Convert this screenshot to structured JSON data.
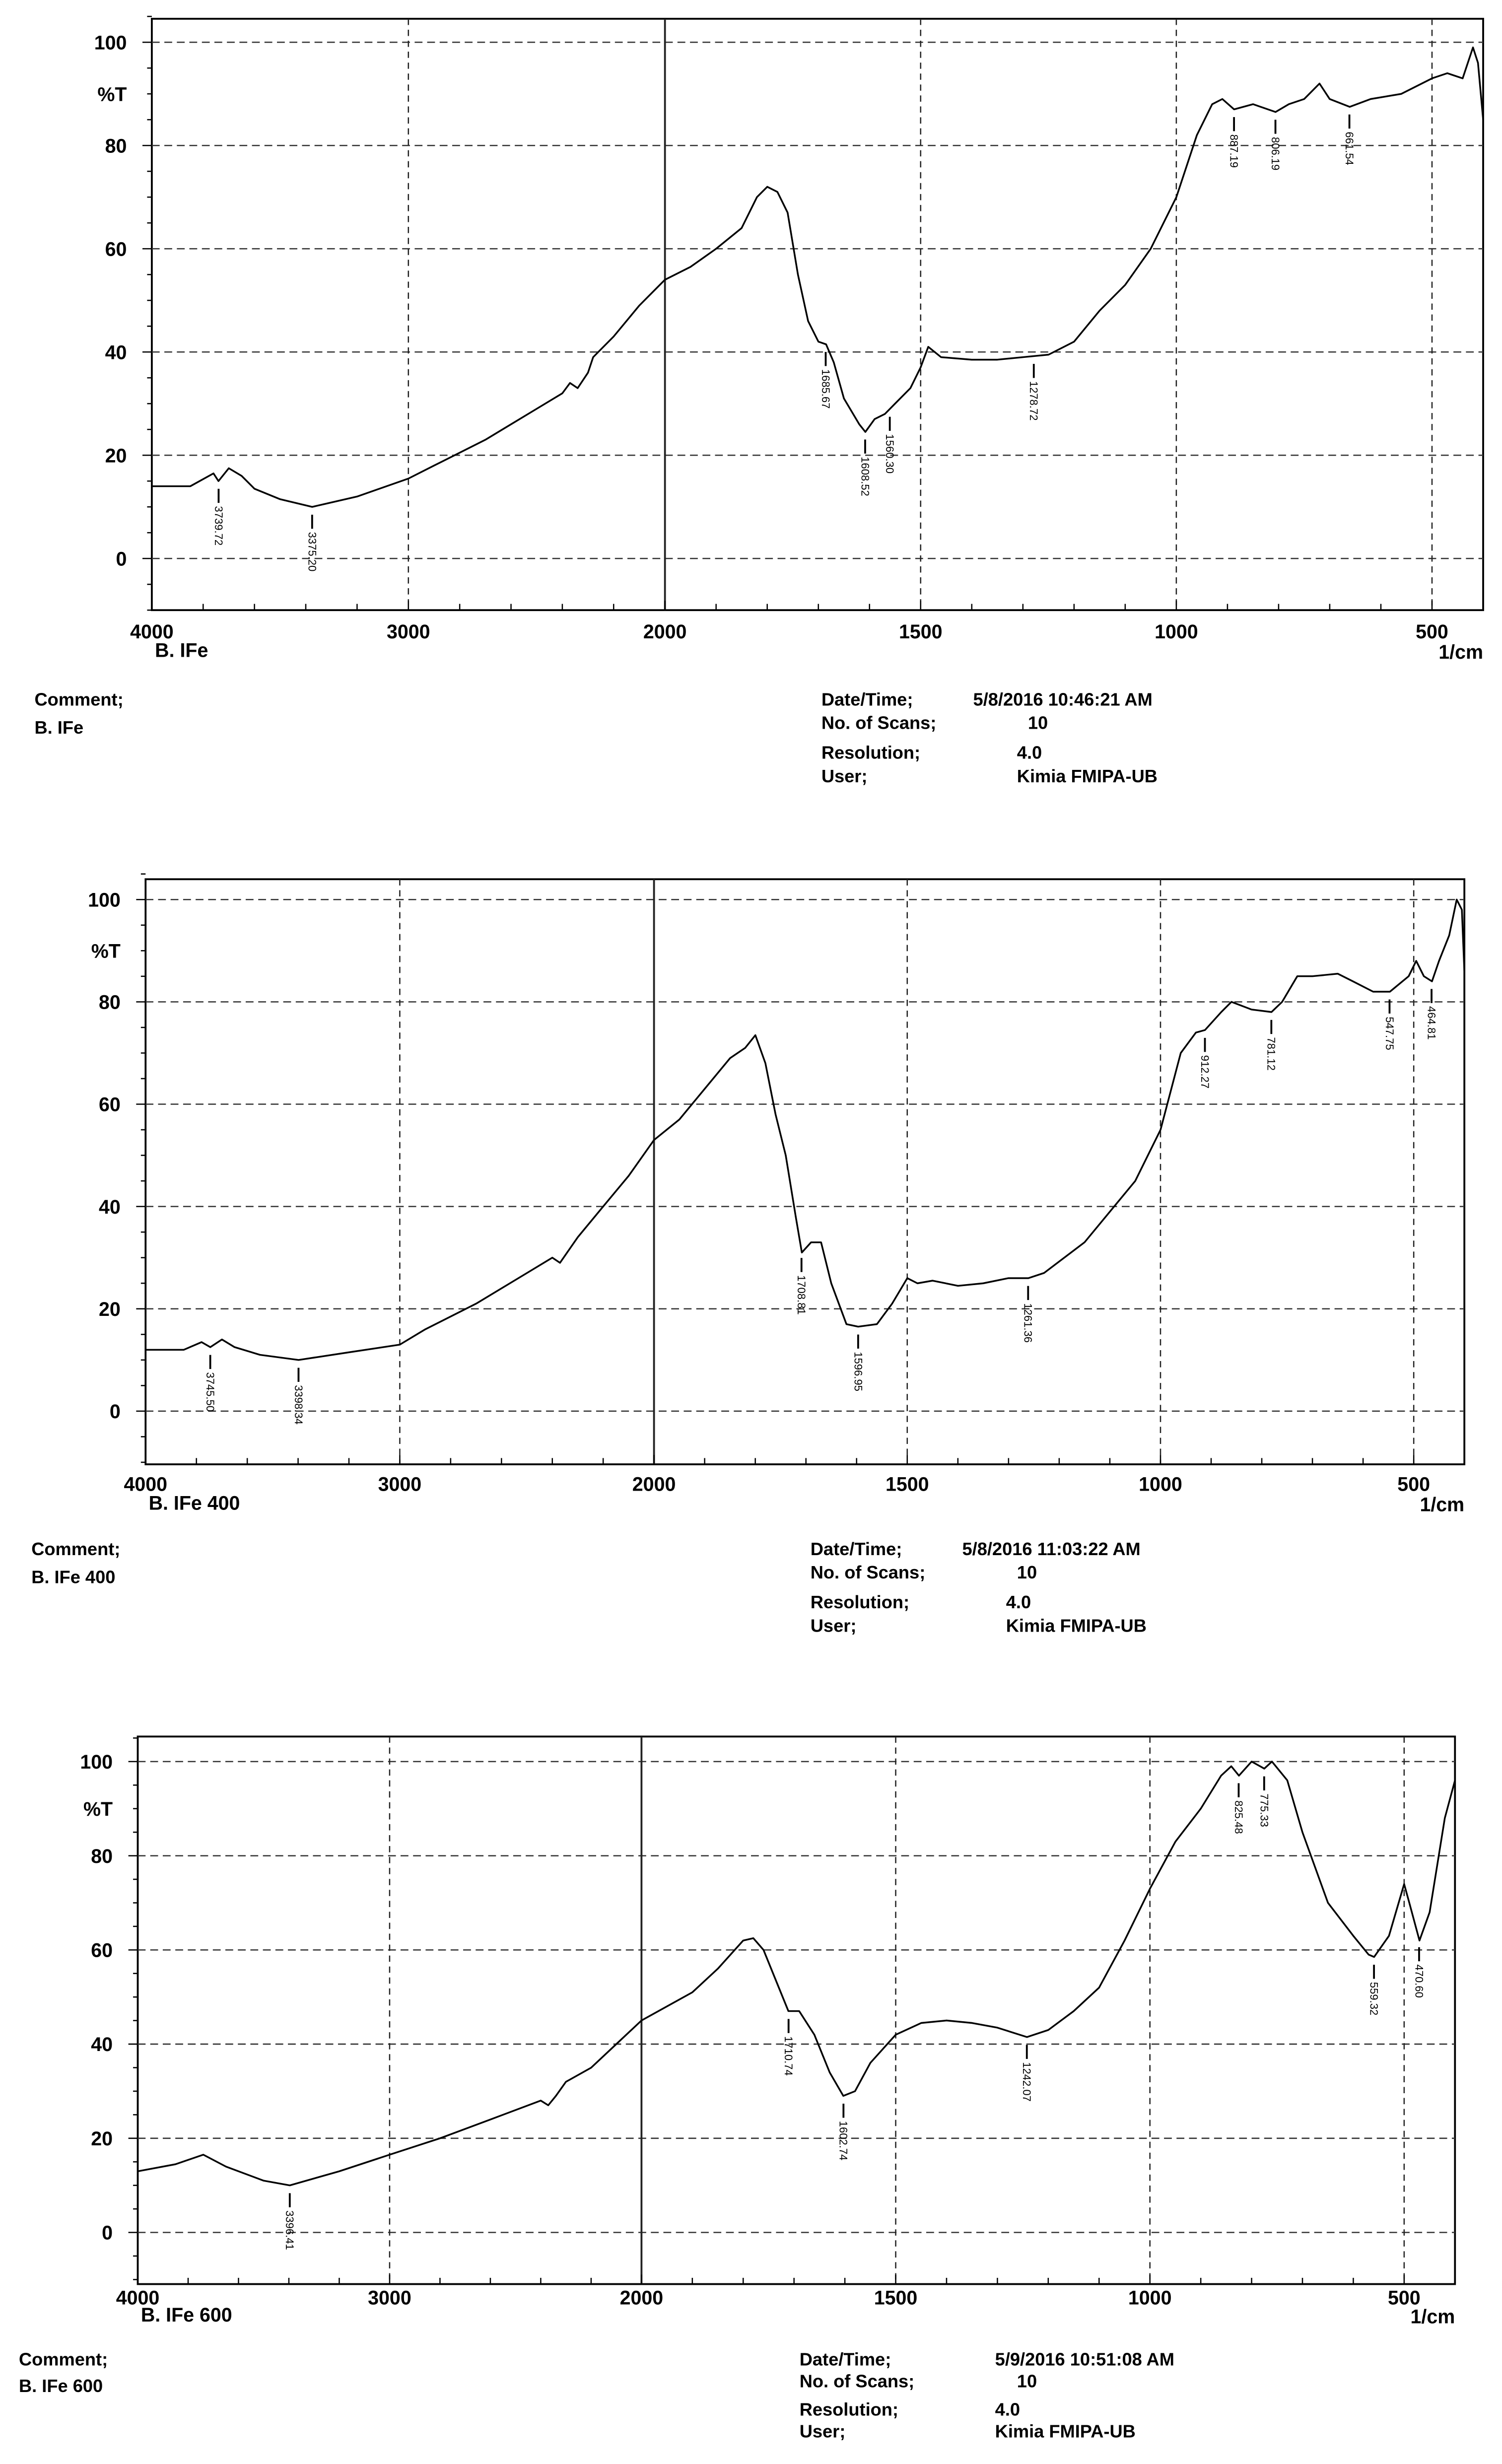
{
  "chart_data": [
    {
      "type": "line",
      "sample": "B. IFe",
      "xlabel": "1/cm",
      "ylabel": "%T",
      "xlim": [
        4000,
        400
      ],
      "ylim": [
        -10,
        105
      ],
      "xticks": [
        4000,
        3000,
        2000,
        1500,
        1000,
        500
      ],
      "yticks": [
        100,
        80,
        60,
        40,
        20,
        0
      ],
      "grid": true,
      "comment_label": "Comment;",
      "comment": "B. IFe",
      "meta": {
        "date_label": "Date/Time;",
        "date": "5/8/2016 10:46:21 AM",
        "scans_label": "No. of Scans;",
        "scans": "10",
        "resolution_label": "Resolution;",
        "resolution": "4.0",
        "user_label": "User;",
        "user": "Kimia FMIPA-UB"
      },
      "peaks": [
        "3739.72",
        "3375.20",
        "1685.67",
        "1608.52",
        "1560.30",
        "1278.72",
        "887.19",
        "806.19",
        "661.54"
      ],
      "series": [
        {
          "name": "B. IFe",
          "x": [
            4000,
            3850,
            3760,
            3740,
            3700,
            3650,
            3600,
            3500,
            3375,
            3200,
            3000,
            2900,
            2700,
            2500,
            2400,
            2370,
            2340,
            2300,
            2280,
            2200,
            2100,
            2000,
            1950,
            1900,
            1850,
            1820,
            1800,
            1780,
            1760,
            1740,
            1720,
            1700,
            1685,
            1670,
            1650,
            1620,
            1608,
            1590,
            1570,
            1550,
            1520,
            1500,
            1485,
            1460,
            1400,
            1350,
            1300,
            1250,
            1200,
            1150,
            1100,
            1050,
            1000,
            960,
            930,
            910,
            887,
            850,
            806,
            780,
            750,
            720,
            700,
            661,
            620,
            560,
            500,
            470,
            440,
            420,
            410,
            400
          ],
          "y": [
            14,
            14,
            16.5,
            15,
            17.5,
            16,
            13.5,
            11.5,
            10,
            12,
            15.5,
            18,
            23,
            29,
            32,
            34,
            33,
            36,
            39,
            43,
            49,
            54,
            56.5,
            60,
            64,
            70,
            72,
            71,
            67,
            55,
            46,
            42,
            41.5,
            38,
            31,
            26,
            24.5,
            27,
            28,
            30,
            33,
            37,
            41,
            39,
            38.5,
            38.5,
            39,
            39.5,
            42,
            48,
            53,
            60,
            70,
            82,
            88,
            89,
            87,
            88,
            86.5,
            88,
            89,
            92,
            89,
            87.5,
            89,
            90,
            93,
            94,
            93,
            99,
            96,
            85
          ]
        }
      ]
    },
    {
      "type": "line",
      "sample": "B. IFe 400",
      "xlabel": "1/cm",
      "ylabel": "%T",
      "xlim": [
        4000,
        400
      ],
      "ylim": [
        -10,
        105
      ],
      "xticks": [
        4000,
        3000,
        2000,
        1500,
        1000,
        500
      ],
      "yticks": [
        100,
        80,
        60,
        40,
        20,
        0
      ],
      "grid": true,
      "comment_label": "Comment;",
      "comment": "B. IFe 400",
      "meta": {
        "date_label": "Date/Time;",
        "date": "5/8/2016 11:03:22 AM",
        "scans_label": "No. of Scans;",
        "scans": "10",
        "resolution_label": "Resolution;",
        "resolution": "4.0",
        "user_label": "User;",
        "user": "Kimia FMIPA-UB"
      },
      "peaks": [
        "3745.50",
        "3398.34",
        "1708.81",
        "1596.95",
        "1261.36",
        "912.27",
        "781.12",
        "547.75",
        "464.81"
      ],
      "series": [
        {
          "name": "B. IFe 400",
          "x": [
            4000,
            3850,
            3780,
            3745,
            3700,
            3650,
            3550,
            3398,
            3200,
            3000,
            2900,
            2700,
            2500,
            2400,
            2370,
            2300,
            2200,
            2100,
            2000,
            1950,
            1900,
            1850,
            1820,
            1800,
            1780,
            1760,
            1740,
            1720,
            1708,
            1690,
            1670,
            1650,
            1620,
            1597,
            1560,
            1530,
            1500,
            1480,
            1450,
            1400,
            1350,
            1300,
            1261,
            1230,
            1150,
            1050,
            1000,
            960,
            930,
            912,
            880,
            860,
            820,
            781,
            760,
            730,
            700,
            650,
            620,
            580,
            547,
            510,
            495,
            480,
            464,
            450,
            430,
            415,
            405,
            400
          ],
          "y": [
            12,
            12,
            13.5,
            12.5,
            14,
            12.5,
            11,
            10,
            11.5,
            13,
            16,
            21,
            27,
            30,
            29,
            34,
            40,
            46,
            53,
            57,
            63,
            69,
            71,
            73.5,
            68,
            58,
            50,
            38,
            31,
            33,
            33,
            25,
            17,
            16.5,
            17,
            21,
            26,
            25,
            25.5,
            24.5,
            25,
            26,
            26,
            27,
            33,
            45,
            55,
            70,
            74,
            74.5,
            78,
            80,
            78.5,
            78,
            80,
            85,
            85,
            85.5,
            84,
            82,
            82,
            85,
            88,
            85,
            84,
            88,
            93,
            100,
            98,
            86
          ]
        }
      ]
    },
    {
      "type": "line",
      "sample": "B. IFe 600",
      "xlabel": "1/cm",
      "ylabel": "%T",
      "xlim": [
        4000,
        400
      ],
      "ylim": [
        -10,
        105
      ],
      "xticks": [
        4000,
        3000,
        2000,
        1500,
        1000,
        500
      ],
      "yticks": [
        100,
        80,
        60,
        40,
        20,
        0
      ],
      "grid": true,
      "comment_label": "Comment;",
      "comment": "B. IFe 600",
      "meta": {
        "date_label": "Date/Time;",
        "date": "5/9/2016 10:51:08 AM",
        "scans_label": "No. of Scans;",
        "scans": "10",
        "resolution_label": "Resolution;",
        "resolution": "4.0",
        "user_label": "User;",
        "user": "Kimia FMIPA-UB"
      },
      "peaks": [
        "3396.41",
        "1710.74",
        "1602.74",
        "1242.07",
        "825.48",
        "775.33",
        "559.32",
        "470.60"
      ],
      "series": [
        {
          "name": "B. IFe 600",
          "x": [
            4000,
            3850,
            3740,
            3650,
            3500,
            3396,
            3200,
            3000,
            2800,
            2600,
            2400,
            2370,
            2340,
            2300,
            2200,
            2100,
            2000,
            1900,
            1850,
            1800,
            1780,
            1760,
            1730,
            1711,
            1690,
            1660,
            1630,
            1603,
            1580,
            1550,
            1500,
            1450,
            1400,
            1350,
            1300,
            1242,
            1200,
            1150,
            1100,
            1050,
            1000,
            950,
            900,
            860,
            840,
            825,
            800,
            775,
            760,
            730,
            700,
            650,
            600,
            570,
            559,
            530,
            500,
            490,
            470,
            450,
            420,
            400
          ],
          "y": [
            13,
            14.5,
            16.5,
            14,
            11,
            10,
            13,
            16.5,
            20,
            24,
            28,
            27,
            29,
            32,
            35,
            40,
            45,
            51,
            56,
            62,
            62.5,
            60,
            52,
            47,
            47,
            42,
            34,
            29,
            30,
            36,
            42,
            44.5,
            45,
            44.5,
            43.5,
            41.5,
            43,
            47,
            52,
            62,
            73,
            83,
            90,
            97,
            99,
            97,
            100,
            98.5,
            100,
            96,
            85,
            70,
            63,
            59,
            58.5,
            63,
            74,
            70,
            62,
            68,
            88,
            96
          ]
        }
      ]
    }
  ]
}
